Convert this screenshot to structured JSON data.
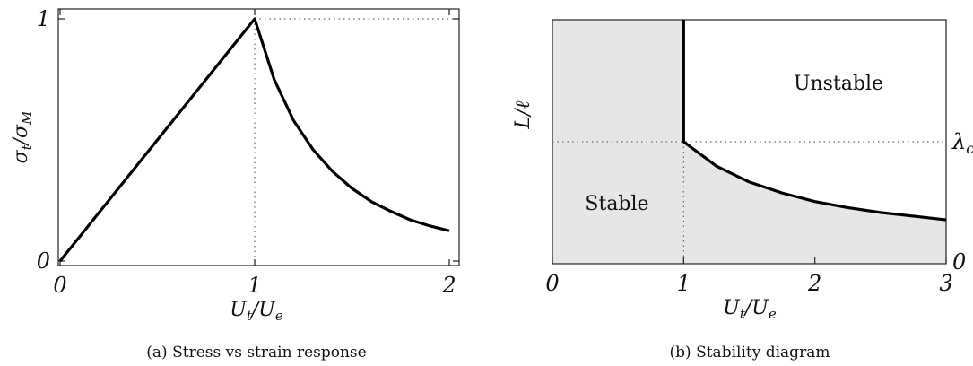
{
  "chart_data": [
    {
      "type": "line",
      "caption": "(a) Stress vs strain response",
      "xlabel": "U_t/U_e",
      "ylabel": "σ_t/σ_M",
      "xlim": [
        0,
        2
      ],
      "ylim": [
        0,
        1
      ],
      "x_ticks": [
        "0",
        "1",
        "2"
      ],
      "y_ticks": [
        "0",
        "1"
      ],
      "series": [
        {
          "x": [
            0,
            0.25,
            0.5,
            0.75,
            1,
            1.1,
            1.2,
            1.3,
            1.4,
            1.5,
            1.6,
            1.7,
            1.8,
            1.9,
            2
          ],
          "y": [
            0,
            0.25,
            0.5,
            0.75,
            1,
            0.75,
            0.58,
            0.46,
            0.37,
            0.3,
            0.245,
            0.205,
            0.17,
            0.145,
            0.125
          ]
        }
      ],
      "guides": {
        "x": 1,
        "y": 1
      },
      "grid": false
    },
    {
      "type": "area",
      "caption": "(b) Stability diagram",
      "xlabel": "U_t/U_e",
      "ylabel": "L/ℓ",
      "xlim": [
        0,
        3
      ],
      "ylim": [
        0,
        1
      ],
      "x_ticks": [
        "0",
        "1",
        "2",
        "3"
      ],
      "right_ticks": [
        "0",
        "λ_c"
      ],
      "lambda_c": 0.5,
      "regions": {
        "stable": "Stable",
        "unstable": "Unstable"
      },
      "boundary": {
        "vertical_x": 1,
        "x": [
          1,
          1.25,
          1.5,
          1.75,
          2,
          2.25,
          2.5,
          2.75,
          3
        ],
        "y": [
          0.5,
          0.4,
          0.335,
          0.29,
          0.255,
          0.23,
          0.21,
          0.195,
          0.18
        ]
      },
      "grid": false
    }
  ],
  "colors": {
    "stable_fill": "#e6e6e6",
    "curve": "#000000"
  }
}
